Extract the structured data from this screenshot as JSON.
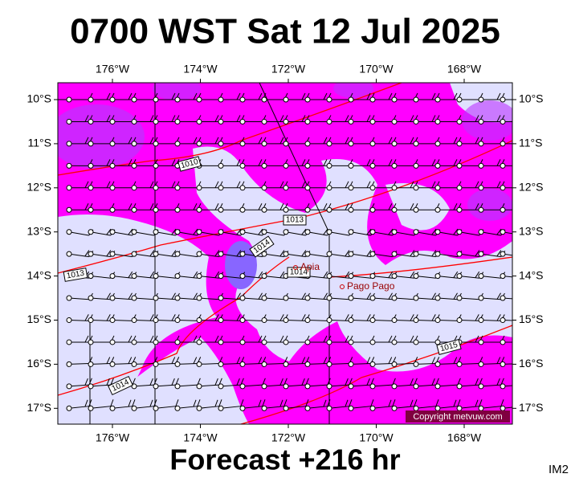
{
  "header": {
    "title": "0700 WST Sat 12 Jul 2025"
  },
  "map": {
    "lon_labels": [
      "176°W",
      "174°W",
      "172°W",
      "170°W",
      "168°W"
    ],
    "lat_labels": [
      "10°S",
      "11°S",
      "12°S",
      "13°S",
      "14°S",
      "15°S",
      "16°S",
      "17°S"
    ],
    "isobar_labels": [
      "1010",
      "1013",
      "1014",
      "1013",
      "1014",
      "1015",
      "1014"
    ],
    "places": [
      "Apia",
      "Pago Pago"
    ],
    "copyright": "Copyright metvuw.com"
  },
  "footer": {
    "forecast": "Forecast +216 hr",
    "code": "IM2"
  }
}
